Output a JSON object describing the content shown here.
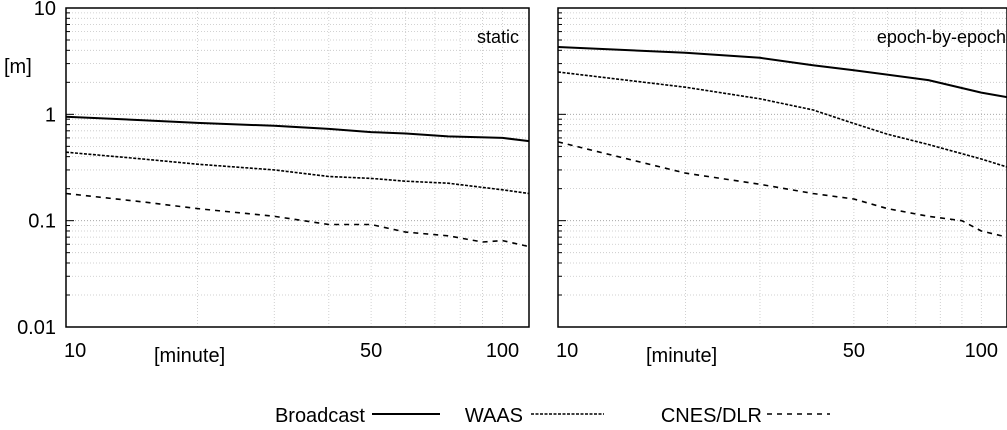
{
  "chart_data": [
    {
      "type": "line",
      "panel_title": "static",
      "ylabel": "[m]",
      "xlabel": "[minute]",
      "x_scale": "log",
      "y_scale": "log",
      "xlim": [
        10,
        115
      ],
      "ylim": [
        0.01,
        10
      ],
      "x_ticks": [
        {
          "value": 10,
          "label": "10"
        },
        {
          "value": 50,
          "label": "50"
        },
        {
          "value": 100,
          "label": "100"
        }
      ],
      "y_ticks": [
        {
          "value": 10,
          "label": "10"
        },
        {
          "value": 1,
          "label": "1"
        },
        {
          "value": 0.1,
          "label": "0.1"
        },
        {
          "value": 0.01,
          "label": "0.01"
        }
      ],
      "grid": true,
      "series": [
        {
          "name": "Broadcast",
          "style": "solid",
          "x": [
            10,
            15,
            20,
            30,
            40,
            50,
            60,
            75,
            100,
            115
          ],
          "y": [
            0.95,
            0.88,
            0.83,
            0.78,
            0.73,
            0.68,
            0.66,
            0.62,
            0.6,
            0.56
          ]
        },
        {
          "name": "WAAS",
          "style": "dense-dash",
          "x": [
            10,
            15,
            20,
            30,
            40,
            50,
            60,
            75,
            100,
            115
          ],
          "y": [
            0.44,
            0.38,
            0.34,
            0.3,
            0.26,
            0.25,
            0.235,
            0.225,
            0.195,
            0.18
          ]
        },
        {
          "name": "CNES/DLR",
          "style": "dash",
          "x": [
            10,
            15,
            20,
            30,
            40,
            50,
            60,
            75,
            90,
            100,
            115
          ],
          "y": [
            0.18,
            0.15,
            0.13,
            0.11,
            0.092,
            0.092,
            0.078,
            0.072,
            0.063,
            0.065,
            0.057
          ]
        }
      ]
    },
    {
      "type": "line",
      "panel_title": "epoch-by-epoch",
      "xlabel": "[minute]",
      "x_scale": "log",
      "y_scale": "log",
      "xlim": [
        10,
        115
      ],
      "ylim": [
        0.01,
        10
      ],
      "x_ticks": [
        {
          "value": 10,
          "label": "10"
        },
        {
          "value": 50,
          "label": "50"
        },
        {
          "value": 100,
          "label": "100"
        }
      ],
      "grid": true,
      "series": [
        {
          "name": "Broadcast",
          "style": "solid",
          "x": [
            10,
            20,
            30,
            40,
            50,
            75,
            100,
            115
          ],
          "y": [
            4.3,
            3.8,
            3.4,
            2.9,
            2.6,
            2.1,
            1.6,
            1.45
          ]
        },
        {
          "name": "WAAS",
          "style": "dense-dash",
          "x": [
            10,
            20,
            30,
            40,
            50,
            60,
            75,
            100,
            115
          ],
          "y": [
            2.5,
            1.8,
            1.4,
            1.1,
            0.82,
            0.65,
            0.52,
            0.38,
            0.32
          ]
        },
        {
          "name": "CNES/DLR",
          "style": "dash",
          "x": [
            10,
            20,
            30,
            40,
            50,
            60,
            75,
            90,
            100,
            115
          ],
          "y": [
            0.55,
            0.28,
            0.22,
            0.18,
            0.16,
            0.13,
            0.11,
            0.1,
            0.08,
            0.07
          ]
        }
      ]
    }
  ],
  "legend": {
    "placement": "bottom-center",
    "entries": [
      {
        "label": "Broadcast",
        "style": "solid"
      },
      {
        "label": "WAAS",
        "style": "dense-dash"
      },
      {
        "label": "CNES/DLR",
        "style": "dash"
      }
    ]
  }
}
